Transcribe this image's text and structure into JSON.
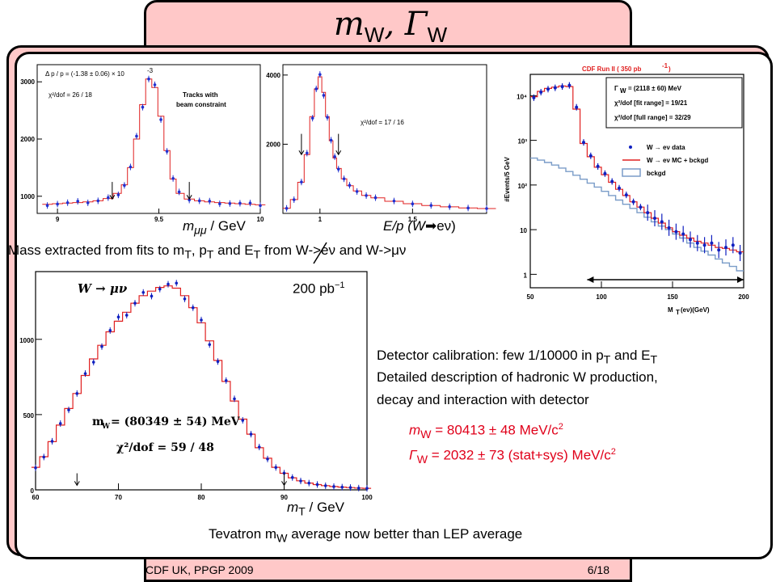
{
  "slide": {
    "title_main": "m",
    "title_sub1": "W",
    "title_sep": ", ",
    "title_gamma": "Γ",
    "title_sub2": "W",
    "footer_left": "CDF UK, PPGP 2009",
    "footer_right": "6/18"
  },
  "labels": {
    "mmumu_axis": "m",
    "mmumu_sub": "μμ",
    "mmumu_unit": " / GeV",
    "ep_axis_prefix": "E/p (W",
    "ep_axis_suffix": "eν)",
    "mass_extracted_a": "Mass extracted from fits to m",
    "mass_extracted_T1": "T",
    "mass_extracted_b": ", p",
    "mass_extracted_T2": "T",
    "mass_extracted_c": " and E",
    "mass_extracted_T3": "T",
    "mass_extracted_d": " from W->eν  and W->μν",
    "lumi_200": "200 pb",
    "lumi_exp": "−1",
    "mt_axis": "m",
    "mt_sub": "T",
    "mt_unit": " / GeV",
    "calib_a": "Detector calibration: few 1/10000 in p",
    "calib_T1": "T",
    "calib_b": " and E",
    "calib_T2": "T",
    "detailed1": "Detailed description of hadronic W production,",
    "detailed2": "decay and interaction with detector",
    "mw_res_a": "m",
    "mw_res_sub": "W",
    "mw_res_b": " = 80413 ± 48 MeV/c",
    "mw_res_exp": "2",
    "gw_res_a": "Γ",
    "gw_res_sub": "W",
    "gw_res_b": " = 2032 ± 73 (stat+sys) MeV/c",
    "gw_res_exp": "2",
    "tevatron_a": "Tevatron m",
    "tevatron_sub": "W",
    "tevatron_b": " average now better than LEP average"
  },
  "chart_data": [
    {
      "type": "line",
      "name": "mumu-mass",
      "title": "",
      "annotation1": "Δ p / p = (-1.38 ± 0.06) × 10",
      "annotation1_exp": "-3",
      "annotation2": "χ²/dof = 26 / 18",
      "annotation3a": "Tracks with",
      "annotation3b": "beam constraint",
      "xlim": [
        8.9,
        10.0
      ],
      "ylim": [
        700,
        3300
      ],
      "xticks": [
        "9",
        "9.5",
        "10"
      ],
      "yticks": [
        "1000",
        "2000",
        "3000"
      ],
      "arrows_x": [
        9.27,
        9.65
      ],
      "x": [
        8.95,
        9.0,
        9.05,
        9.1,
        9.15,
        9.2,
        9.25,
        9.3,
        9.33,
        9.36,
        9.39,
        9.42,
        9.45,
        9.48,
        9.51,
        9.54,
        9.57,
        9.6,
        9.65,
        9.7,
        9.75,
        9.8,
        9.85,
        9.9,
        9.95,
        10.0
      ],
      "y": [
        860,
        870,
        880,
        890,
        900,
        920,
        960,
        1050,
        1200,
        1500,
        2000,
        2600,
        3050,
        2900,
        2400,
        1800,
        1300,
        1050,
        950,
        920,
        900,
        890,
        880,
        870,
        860,
        850
      ]
    },
    {
      "type": "line",
      "name": "e-over-p",
      "title": "",
      "annotation1": "χ²/dof = 17 / 16",
      "xlim": [
        0.8,
        1.9
      ],
      "ylim": [
        0,
        4300
      ],
      "xticks": [
        "1",
        "1.5"
      ],
      "yticks": [
        "2000",
        "4000"
      ],
      "arrows_x": [
        0.9,
        1.1
      ],
      "x": [
        0.82,
        0.86,
        0.9,
        0.93,
        0.96,
        0.98,
        1.0,
        1.02,
        1.04,
        1.06,
        1.08,
        1.1,
        1.13,
        1.16,
        1.2,
        1.25,
        1.3,
        1.4,
        1.5,
        1.6,
        1.7,
        1.8,
        1.9
      ],
      "y": [
        150,
        400,
        900,
        1700,
        2800,
        3600,
        3950,
        3500,
        2800,
        2100,
        1600,
        1300,
        1000,
        800,
        650,
        520,
        450,
        350,
        280,
        230,
        190,
        160,
        140
      ]
    },
    {
      "type": "line",
      "name": "cdf-mt-enu",
      "title": "CDF Run II ( 350 pb",
      "title_exp": "-1",
      "title_end": " )",
      "stat_gamma": "Γ",
      "stat_gamma_sub": "W",
      "stat_line1": " = (2118 ± 60) MeV",
      "stat_line2": "χ²/dof [fit range] = 19/21",
      "stat_line3": "χ²/dof [full range] = 32/29",
      "legend": [
        "W → eν data",
        "W → eν MC + bckgd",
        "bckgd"
      ],
      "xlabel": "M",
      "xlabel_sub": "T",
      "xlabel_end": " (eν)(GeV)",
      "ylabel": "#Events/5 GeV",
      "xscale": "linear",
      "yscale": "log",
      "xlim": [
        50,
        200
      ],
      "ylim": [
        0.5,
        30000
      ],
      "xticks": [
        "50",
        "100",
        "150",
        "200"
      ],
      "yticks": [
        "1",
        "10",
        "10²",
        "10³",
        "10⁴"
      ],
      "fit_range": [
        90,
        200
      ],
      "x": [
        52.5,
        57.5,
        62.5,
        67.5,
        72.5,
        77.5,
        82.5,
        87.5,
        92.5,
        97.5,
        102.5,
        107.5,
        112.5,
        117.5,
        122.5,
        127.5,
        132.5,
        137.5,
        142.5,
        147.5,
        152.5,
        157.5,
        162.5,
        167.5,
        172.5,
        177.5,
        182.5,
        187.5,
        192.5,
        197.5
      ],
      "series": [
        {
          "name": "W → eν data",
          "values": [
            9000,
            12000,
            14000,
            15000,
            16000,
            17000,
            5500,
            900,
            450,
            260,
            180,
            120,
            85,
            60,
            42,
            32,
            24,
            18,
            15,
            11,
            9,
            8,
            6,
            5,
            4.5,
            5,
            3.5,
            4,
            4.5,
            3
          ]
        },
        {
          "name": "W → eν MC + bckgd",
          "values": [
            9500,
            12500,
            14500,
            15500,
            16500,
            16000,
            5000,
            850,
            430,
            250,
            170,
            115,
            80,
            58,
            42,
            32,
            24,
            18,
            14,
            11,
            9,
            7.5,
            6.5,
            5.5,
            5,
            4.5,
            4,
            3.8,
            3.5,
            3.2
          ]
        },
        {
          "name": "bckgd",
          "values": [
            400,
            360,
            320,
            280,
            240,
            200,
            165,
            135,
            110,
            90,
            72,
            58,
            46,
            37,
            30,
            24,
            19,
            15,
            12,
            10,
            8,
            6.5,
            5,
            4,
            3.3,
            2.7,
            2.2,
            1.8,
            1.5,
            1.2
          ]
        }
      ]
    },
    {
      "type": "line",
      "name": "mt-munu",
      "title": "W → μν",
      "annotation1": "m",
      "annotation1_sub": "W",
      "annotation1_end": " = (80349 ± 54) MeV",
      "annotation2": "χ²/dof = 59 / 48",
      "xlim": [
        60,
        100
      ],
      "ylim": [
        0,
        1450
      ],
      "xticks": [
        "60",
        "70",
        "80",
        "90",
        "100"
      ],
      "yticks": [
        "0",
        "500",
        "1000"
      ],
      "arrows_x": [
        65,
        90
      ],
      "x": [
        60,
        61,
        62,
        63,
        64,
        65,
        66,
        67,
        68,
        69,
        70,
        71,
        72,
        73,
        74,
        75,
        76,
        77,
        78,
        79,
        80,
        81,
        82,
        83,
        84,
        85,
        86,
        87,
        88,
        89,
        90,
        91,
        92,
        93,
        94,
        95,
        96,
        97,
        98,
        99,
        100
      ],
      "y": [
        150,
        220,
        320,
        430,
        540,
        640,
        760,
        870,
        960,
        1050,
        1120,
        1180,
        1240,
        1290,
        1320,
        1345,
        1355,
        1340,
        1290,
        1210,
        1110,
        990,
        860,
        720,
        590,
        470,
        370,
        280,
        210,
        150,
        110,
        80,
        60,
        45,
        35,
        28,
        22,
        18,
        15,
        12,
        10
      ]
    }
  ]
}
